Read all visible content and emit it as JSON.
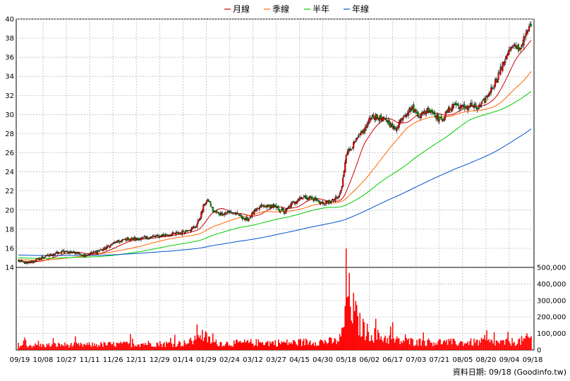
{
  "chart_data": {
    "type": "candlestick",
    "legend": [
      {
        "name": "月線",
        "color": "#cc0000"
      },
      {
        "name": "季線",
        "color": "#ff6600"
      },
      {
        "name": "半年",
        "color": "#00cc00"
      },
      {
        "name": "年線",
        "color": "#0055cc"
      }
    ],
    "price_axis": {
      "min": 14,
      "max": 40,
      "ticks": [
        14,
        16,
        18,
        20,
        22,
        24,
        26,
        28,
        30,
        32,
        34,
        36,
        38,
        40
      ]
    },
    "volume_axis": {
      "min": 0,
      "max": 500000,
      "ticks": [
        "0",
        "100,000",
        "200,000",
        "300,000",
        "400,000",
        "500,000"
      ]
    },
    "x_labels": [
      "09/19",
      "10/08",
      "10/27",
      "11/11",
      "11/26",
      "12/11",
      "12/29",
      "01/14",
      "01/29",
      "02/24",
      "03/12",
      "03/27",
      "04/15",
      "04/30",
      "05/18",
      "06/02",
      "06/17",
      "07/03",
      "07/21",
      "08/05",
      "08/20",
      "09/04",
      "09/18"
    ],
    "grid": true,
    "close_anchors": [
      [
        0,
        14.7
      ],
      [
        8,
        14.4
      ],
      [
        20,
        14.9
      ],
      [
        32,
        15.4
      ],
      [
        42,
        15.6
      ],
      [
        52,
        15.6
      ],
      [
        62,
        15.3
      ],
      [
        70,
        15.5
      ],
      [
        80,
        15.9
      ],
      [
        92,
        16.6
      ],
      [
        104,
        17.0
      ],
      [
        116,
        17.0
      ],
      [
        128,
        17.2
      ],
      [
        140,
        17.4
      ],
      [
        152,
        17.6
      ],
      [
        160,
        17.9
      ],
      [
        168,
        18.3
      ],
      [
        172,
        19.3
      ],
      [
        176,
        20.7
      ],
      [
        180,
        21.0
      ],
      [
        184,
        19.9
      ],
      [
        190,
        19.6
      ],
      [
        200,
        19.8
      ],
      [
        210,
        19.4
      ],
      [
        216,
        18.9
      ],
      [
        222,
        19.7
      ],
      [
        230,
        20.4
      ],
      [
        240,
        20.4
      ],
      [
        252,
        19.8
      ],
      [
        260,
        20.8
      ],
      [
        268,
        21.4
      ],
      [
        278,
        21.2
      ],
      [
        288,
        20.7
      ],
      [
        296,
        20.9
      ],
      [
        303,
        21.4
      ],
      [
        306,
        22.4
      ],
      [
        310,
        26.0
      ],
      [
        314,
        26.4
      ],
      [
        320,
        27.3
      ],
      [
        328,
        28.5
      ],
      [
        334,
        29.9
      ],
      [
        342,
        29.6
      ],
      [
        350,
        29.3
      ],
      [
        356,
        28.4
      ],
      [
        364,
        29.9
      ],
      [
        372,
        30.7
      ],
      [
        380,
        29.9
      ],
      [
        388,
        30.6
      ],
      [
        394,
        30.0
      ],
      [
        400,
        29.3
      ],
      [
        406,
        30.4
      ],
      [
        412,
        31.1
      ],
      [
        420,
        30.7
      ],
      [
        428,
        31.0
      ],
      [
        434,
        30.6
      ],
      [
        440,
        31.3
      ],
      [
        446,
        32.4
      ],
      [
        452,
        33.7
      ],
      [
        458,
        35.2
      ],
      [
        462,
        36.4
      ],
      [
        468,
        37.1
      ],
      [
        474,
        36.9
      ],
      [
        480,
        38.3
      ],
      [
        485,
        39.6
      ]
    ],
    "volume_anchors": [
      [
        0,
        30000
      ],
      [
        20,
        28000
      ],
      [
        40,
        32000
      ],
      [
        60,
        30000
      ],
      [
        80,
        34000
      ],
      [
        100,
        35000
      ],
      [
        120,
        40000
      ],
      [
        140,
        38000
      ],
      [
        160,
        42000
      ],
      [
        166,
        60000
      ],
      [
        170,
        120000
      ],
      [
        174,
        90000
      ],
      [
        178,
        75000
      ],
      [
        184,
        45000
      ],
      [
        200,
        40000
      ],
      [
        220,
        45000
      ],
      [
        240,
        45000
      ],
      [
        260,
        45000
      ],
      [
        280,
        52000
      ],
      [
        300,
        52000
      ],
      [
        305,
        75000
      ],
      [
        308,
        160000
      ],
      [
        310,
        420000
      ],
      [
        312,
        340000
      ],
      [
        316,
        260000
      ],
      [
        322,
        160000
      ],
      [
        330,
        110000
      ],
      [
        340,
        85000
      ],
      [
        350,
        70000
      ],
      [
        360,
        55000
      ],
      [
        380,
        50000
      ],
      [
        400,
        48000
      ],
      [
        420,
        45000
      ],
      [
        440,
        50000
      ],
      [
        460,
        45000
      ],
      [
        475,
        55000
      ],
      [
        485,
        75000
      ]
    ],
    "date_source": "資料日期: 09/18  (Goodinfo.tw)"
  }
}
